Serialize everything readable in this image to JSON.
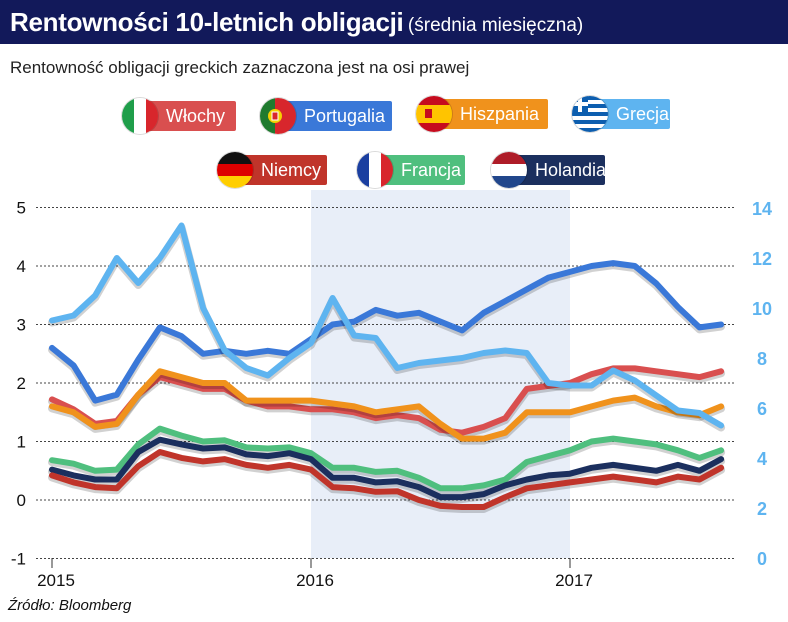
{
  "header": {
    "title": "Rentowności 10-letnich obligacji",
    "title_suffix": "(średnia miesięczna)",
    "subtitle": "Rentowność obligacji greckich zaznaczona jest na osi prawej"
  },
  "source": "Źródło: Bloomberg",
  "colors": {
    "title_bg": "#12195a",
    "italy": "#d94f4f",
    "portugal": "#3a78d8",
    "spain": "#f0921c",
    "greece": "#5eb4f0",
    "germany": "#c0342a",
    "france": "#4fbf7e",
    "netherlands": "#1b2f5e",
    "highlight": "#e8eef8"
  },
  "legend": [
    {
      "label": "Włochy",
      "flag": "italy-flag-icon",
      "color": "#d94f4f",
      "text_color": "#ffffff"
    },
    {
      "label": "Portugalia",
      "flag": "portugal-flag-icon",
      "color": "#3a78d8",
      "text_color": "#ffffff"
    },
    {
      "label": "Hiszpania",
      "flag": "spain-flag-icon",
      "color": "#f0921c",
      "text_color": "#ffffff"
    },
    {
      "label": "Grecja",
      "flag": "greece-flag-icon",
      "color": "#5eb4f0",
      "text_color": "#ffffff"
    },
    {
      "label": "Niemcy",
      "flag": "germany-flag-icon",
      "color": "#c0342a",
      "text_color": "#ffffff"
    },
    {
      "label": "Francja",
      "flag": "france-flag-icon",
      "color": "#4fbf7e",
      "text_color": "#ffffff"
    },
    {
      "label": "Holandia",
      "flag": "netherlands-flag-icon",
      "color": "#1b2f5e",
      "text_color": "#ffffff"
    }
  ],
  "chart_data": {
    "type": "line",
    "x": [
      "2015-01",
      "2015-02",
      "2015-03",
      "2015-04",
      "2015-05",
      "2015-06",
      "2015-07",
      "2015-08",
      "2015-09",
      "2015-10",
      "2015-11",
      "2015-12",
      "2016-01",
      "2016-02",
      "2016-03",
      "2016-04",
      "2016-05",
      "2016-06",
      "2016-07",
      "2016-08",
      "2016-09",
      "2016-10",
      "2016-11",
      "2016-12",
      "2017-01",
      "2017-02",
      "2017-03",
      "2017-04",
      "2017-05",
      "2017-06",
      "2017-07",
      "2017-08"
    ],
    "x_tick_labels": [
      "2015",
      "2016",
      "2017"
    ],
    "highlight_range": [
      "2016-01",
      "2017-01"
    ],
    "y_left_range": [
      -1,
      5
    ],
    "y_left_ticks": [
      "-1",
      "0",
      "1",
      "2",
      "3",
      "4",
      "5"
    ],
    "y_right_range": [
      0,
      14
    ],
    "y_right_ticks": [
      "0",
      "2",
      "4",
      "6",
      "8",
      "10",
      "12",
      "14"
    ],
    "grid": "horizontal-dashed",
    "series": [
      {
        "name": "Włochy",
        "axis": "left",
        "color": "#d94f4f",
        "values": [
          1.72,
          1.55,
          1.3,
          1.35,
          1.8,
          2.1,
          2.0,
          1.9,
          1.9,
          1.7,
          1.6,
          1.6,
          1.55,
          1.55,
          1.5,
          1.4,
          1.45,
          1.4,
          1.2,
          1.15,
          1.25,
          1.4,
          1.9,
          1.95,
          2.0,
          2.15,
          2.25,
          2.25,
          2.2,
          2.15,
          2.1,
          2.2
        ]
      },
      {
        "name": "Portugalia",
        "axis": "left",
        "color": "#3a78d8",
        "values": [
          2.6,
          2.3,
          1.7,
          1.8,
          2.4,
          2.95,
          2.8,
          2.5,
          2.55,
          2.5,
          2.55,
          2.5,
          2.75,
          3.0,
          3.05,
          3.25,
          3.15,
          3.2,
          3.05,
          2.9,
          3.2,
          3.4,
          3.6,
          3.8,
          3.9,
          4.0,
          4.05,
          4.0,
          3.7,
          3.3,
          2.95,
          3.0
        ]
      },
      {
        "name": "Hiszpania",
        "axis": "left",
        "color": "#f0921c",
        "values": [
          1.6,
          1.5,
          1.25,
          1.3,
          1.8,
          2.2,
          2.1,
          2.0,
          2.0,
          1.7,
          1.7,
          1.7,
          1.7,
          1.65,
          1.6,
          1.5,
          1.55,
          1.6,
          1.3,
          1.05,
          1.05,
          1.15,
          1.5,
          1.5,
          1.5,
          1.6,
          1.7,
          1.75,
          1.6,
          1.5,
          1.45,
          1.6
        ]
      },
      {
        "name": "Grecja",
        "axis": "right",
        "color": "#5eb4f0",
        "values": [
          9.5,
          9.7,
          10.5,
          12.0,
          11.0,
          12.0,
          13.3,
          10.0,
          8.3,
          7.6,
          7.3,
          8.0,
          8.6,
          10.4,
          8.9,
          8.8,
          7.6,
          7.8,
          7.9,
          8.0,
          8.2,
          8.3,
          8.2,
          7.0,
          6.9,
          6.9,
          7.5,
          7.1,
          6.5,
          5.9,
          5.8,
          5.3
        ]
      },
      {
        "name": "Niemcy",
        "axis": "left",
        "color": "#c0342a",
        "values": [
          0.42,
          0.3,
          0.22,
          0.2,
          0.58,
          0.82,
          0.72,
          0.66,
          0.7,
          0.6,
          0.55,
          0.6,
          0.52,
          0.22,
          0.2,
          0.14,
          0.15,
          0.0,
          -0.1,
          -0.12,
          -0.12,
          0.05,
          0.2,
          0.25,
          0.3,
          0.35,
          0.4,
          0.35,
          0.3,
          0.4,
          0.35,
          0.55
        ]
      },
      {
        "name": "Francja",
        "axis": "left",
        "color": "#4fbf7e",
        "values": [
          0.68,
          0.62,
          0.5,
          0.52,
          0.95,
          1.22,
          1.1,
          1.0,
          1.02,
          0.9,
          0.88,
          0.9,
          0.8,
          0.55,
          0.55,
          0.48,
          0.5,
          0.38,
          0.2,
          0.2,
          0.25,
          0.35,
          0.65,
          0.75,
          0.85,
          1.0,
          1.05,
          1.0,
          0.95,
          0.85,
          0.72,
          0.85
        ]
      },
      {
        "name": "Holandia",
        "axis": "left",
        "color": "#1b2f5e",
        "values": [
          0.52,
          0.42,
          0.35,
          0.35,
          0.82,
          1.03,
          0.95,
          0.88,
          0.9,
          0.78,
          0.75,
          0.8,
          0.7,
          0.38,
          0.38,
          0.3,
          0.32,
          0.22,
          0.05,
          0.05,
          0.1,
          0.25,
          0.35,
          0.42,
          0.45,
          0.55,
          0.6,
          0.55,
          0.5,
          0.6,
          0.5,
          0.7
        ]
      }
    ]
  }
}
